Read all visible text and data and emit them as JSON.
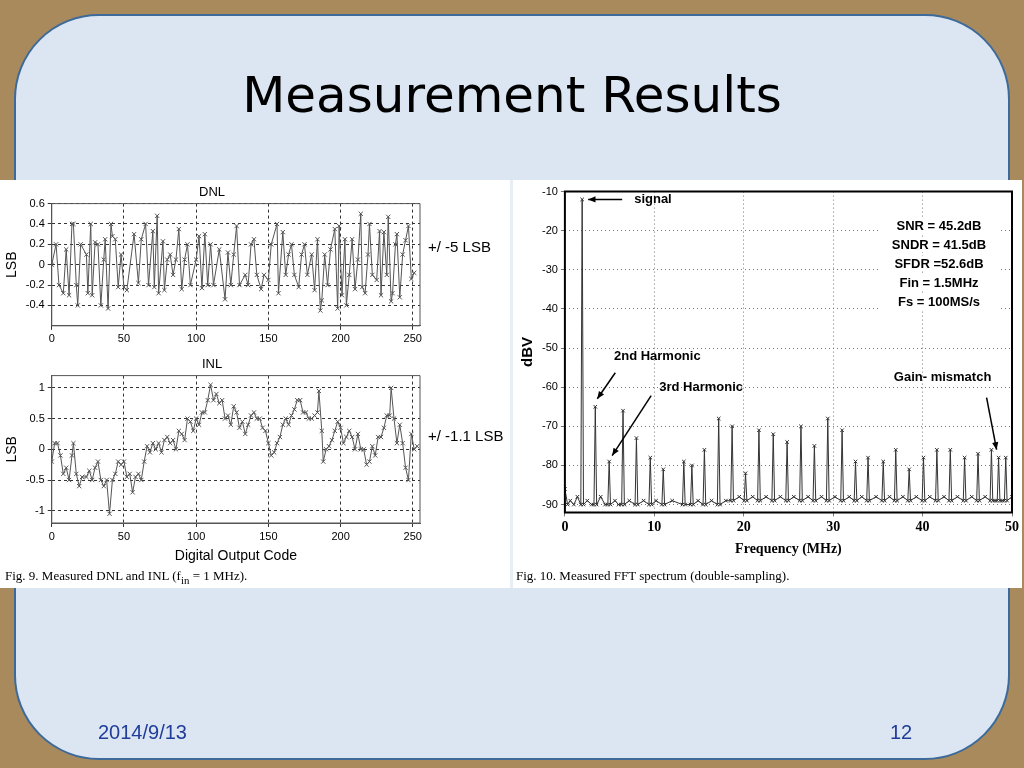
{
  "chart_data": [
    {
      "type": "line",
      "title": "DNL",
      "ylabel": "LSB",
      "xlim": [
        0,
        255
      ],
      "xticks": [
        0,
        50,
        100,
        150,
        200,
        250
      ],
      "ylim": [
        -0.6,
        0.6
      ],
      "yticks": [
        -0.4,
        -0.2,
        0,
        0.2,
        0.4,
        0.6
      ],
      "grid": true,
      "marker": "cross",
      "line_style": "solid",
      "x": [
        0,
        3,
        5,
        8,
        10,
        12,
        14,
        15,
        17,
        18,
        20,
        24,
        25,
        27,
        28,
        30,
        32,
        34,
        36,
        37,
        39,
        41,
        42,
        44,
        46,
        48,
        50,
        52,
        57,
        60,
        62,
        65,
        67,
        70,
        71,
        73,
        74,
        77,
        78,
        80,
        82,
        84,
        86,
        88,
        90,
        92,
        94,
        96,
        100,
        102,
        104,
        106,
        108,
        110,
        112,
        116,
        120,
        122,
        124,
        126,
        128,
        130,
        134,
        136,
        138,
        140,
        142,
        145,
        147,
        150,
        152,
        156,
        157,
        160,
        162,
        164,
        166,
        168,
        171,
        173,
        175,
        177,
        180,
        182,
        184,
        186,
        187,
        189,
        191,
        193,
        196,
        198,
        199,
        201,
        203,
        204,
        206,
        208,
        210,
        212,
        214,
        215,
        217,
        219,
        220,
        222,
        225,
        227,
        228,
        230,
        232,
        233,
        235,
        236,
        238,
        239,
        241,
        243,
        245,
        247,
        249,
        251
      ],
      "series": [
        {
          "color": "#555555",
          "values": [
            0,
            0.2,
            -0.2,
            -0.28,
            0.15,
            -0.3,
            0.4,
            0.4,
            -0.2,
            -0.4,
            0.2,
            0.1,
            -0.28,
            0.4,
            -0.3,
            0.22,
            0.2,
            -0.4,
            0.05,
            0.25,
            -0.43,
            0.4,
            0.28,
            0.25,
            -0.22,
            0.1,
            -0.22,
            -0.25,
            0.3,
            -0.18,
            0.25,
            0.4,
            -0.2,
            0.33,
            -0.22,
            0.48,
            -0.28,
            0.23,
            -0.25,
            0.05,
            0.1,
            -0.1,
            0.05,
            0.35,
            -0.24,
            0.05,
            0.2,
            -0.2,
            0.05,
            0.28,
            -0.23,
            0.3,
            -0.2,
            0.2,
            -0.2,
            0.15,
            -0.34,
            0.12,
            -0.2,
            0.1,
            0.38,
            -0.2,
            -0.1,
            -0.2,
            0.2,
            0.25,
            -0.1,
            -0.24,
            -0.1,
            -0.15,
            0.2,
            0.4,
            -0.28,
            0.32,
            -0.1,
            0.1,
            0.2,
            -0.1,
            -0.22,
            0.1,
            0.2,
            -0.1,
            0.1,
            -0.25,
            0.25,
            -0.45,
            -0.35,
            0.1,
            -0.2,
            0.15,
            0.35,
            -0.43,
            0.38,
            -0.3,
            0.25,
            -0.4,
            -0.1,
            0.25,
            -0.24,
            0.05,
            0.5,
            -0.22,
            -0.28,
            0.1,
            0.4,
            -0.1,
            -0.15,
            0.33,
            -0.3,
            0.32,
            -0.1,
            0.47,
            -0.36,
            -0.28,
            0.2,
            0.3,
            -0.32,
            0.1,
            0.24,
            0.38,
            -0.14,
            -0.08
          ]
        }
      ],
      "annotations": [
        "Measurement Results",
        "+/ -5 LSB"
      ]
    },
    {
      "type": "line",
      "title": "INL",
      "xlabel": "Digital Output Code",
      "ylabel": "LSB",
      "xlim": [
        0,
        255
      ],
      "xticks": [
        0,
        50,
        100,
        150,
        200,
        250
      ],
      "ylim": [
        -1.2,
        1.2
      ],
      "yticks": [
        -1,
        -0.5,
        0,
        0.5,
        1
      ],
      "grid": true,
      "marker": "cross",
      "line_style": "solid",
      "x": [
        0,
        2,
        4,
        6,
        8,
        10,
        12,
        14,
        15,
        17,
        19,
        21,
        24,
        26,
        28,
        30,
        32,
        34,
        36,
        38,
        40,
        42,
        44,
        46,
        48,
        50,
        52,
        54,
        56,
        58,
        60,
        62,
        64,
        66,
        68,
        70,
        72,
        74,
        76,
        78,
        80,
        82,
        84,
        86,
        88,
        90,
        92,
        94,
        96,
        98,
        100,
        102,
        104,
        106,
        108,
        110,
        112,
        114,
        116,
        118,
        120,
        122,
        124,
        126,
        128,
        130,
        132,
        134,
        136,
        138,
        140,
        142,
        144,
        146,
        148,
        150,
        152,
        154,
        156,
        158,
        160,
        162,
        164,
        166,
        168,
        170,
        172,
        174,
        176,
        178,
        180,
        182,
        184,
        185,
        187,
        188,
        190,
        192,
        194,
        196,
        198,
        200,
        202,
        204,
        206,
        208,
        210,
        212,
        214,
        216,
        218,
        220,
        222,
        224,
        226,
        228,
        230,
        232,
        234,
        235,
        237,
        239,
        241,
        243,
        245,
        247,
        249,
        251,
        253
      ],
      "series": [
        {
          "color": "#555555",
          "values": [
            -0.2,
            0.1,
            0.1,
            -0.1,
            -0.4,
            -0.3,
            -0.5,
            -0.1,
            0.1,
            -0.4,
            -0.6,
            -0.45,
            -0.45,
            -0.35,
            -0.5,
            -0.3,
            -0.2,
            -0.5,
            -0.6,
            -0.5,
            -1.05,
            -0.5,
            -0.4,
            -0.2,
            -0.25,
            -0.2,
            -0.45,
            -0.4,
            -0.7,
            -0.45,
            -0.4,
            -0.5,
            -0.2,
            0.05,
            -0.05,
            0.1,
            0,
            0.1,
            -0.05,
            0.15,
            0.2,
            0.1,
            0.15,
            0,
            0.3,
            0.25,
            0.15,
            0.5,
            0.45,
            0.3,
            0.5,
            0.4,
            0.6,
            0.6,
            0.8,
            1.05,
            0.8,
            0.9,
            0.75,
            0.8,
            0.5,
            0.55,
            0.4,
            0.7,
            0.6,
            0.35,
            0.45,
            0.25,
            0.4,
            0.55,
            0.6,
            0.5,
            0.5,
            0.35,
            0.3,
            0.1,
            -0.1,
            -0.05,
            0.1,
            0.2,
            0.4,
            0.5,
            0.4,
            0.55,
            0.65,
            0.8,
            0.8,
            0.6,
            0.6,
            0.5,
            0.5,
            0.55,
            0.6,
            0.95,
            0.3,
            -0.2,
            0,
            0.05,
            0.15,
            0.3,
            0.45,
            0.35,
            0.1,
            0.2,
            0.3,
            0.2,
            0,
            0.25,
            0,
            0,
            -0.25,
            -0.2,
            0.05,
            -0.1,
            0.2,
            0.2,
            0.35,
            0.55,
            0.55,
            1,
            0.5,
            0.1,
            0.4,
            0.1,
            -0.3,
            -0.5,
            0.25,
            0,
            0.05
          ]
        }
      ],
      "annotations": [
        "+/ -1.1 LSB",
        "Fig. 9.   Measured DNL and INL (f$_{in}$ = 1 MHz)."
      ]
    },
    {
      "type": "line",
      "xlabel": "Frequency (MHz)",
      "ylabel": "dBV",
      "xlim": [
        0,
        50
      ],
      "xticks": [
        0,
        10,
        20,
        30,
        40,
        50
      ],
      "ylim": [
        -92,
        -10
      ],
      "yticks": [
        -90,
        -80,
        -70,
        -60,
        -50,
        -40,
        -30,
        -20,
        -10
      ],
      "grid": true,
      "marker": "cross",
      "line_style": "solid",
      "x": [
        0,
        0.3,
        0.6,
        1.0,
        1.4,
        1.78,
        1.93,
        2.08,
        2.5,
        3.0,
        3.25,
        3.4,
        3.55,
        4.0,
        4.5,
        4.8,
        4.95,
        5.1,
        5.6,
        6.0,
        6.35,
        6.5,
        6.65,
        7.2,
        7.85,
        8.0,
        8.15,
        8.8,
        9.4,
        9.55,
        9.7,
        10.2,
        10.85,
        11.0,
        11.15,
        12.0,
        13.15,
        13.3,
        13.45,
        14.05,
        14.2,
        14.35,
        14.9,
        15.45,
        15.6,
        15.75,
        16.4,
        17.05,
        17.2,
        17.35,
        18.0,
        18.55,
        18.7,
        18.85,
        19.5,
        20.05,
        20.2,
        20.35,
        21.0,
        21.55,
        21.7,
        21.85,
        22.5,
        23.15,
        23.3,
        23.45,
        24.1,
        24.7,
        24.85,
        25.0,
        25.6,
        26.25,
        26.4,
        26.55,
        27.2,
        27.75,
        27.9,
        28.05,
        28.7,
        29.25,
        29.4,
        29.55,
        30.2,
        30.85,
        31.0,
        31.15,
        31.8,
        32.35,
        32.5,
        32.65,
        33.2,
        33.75,
        33.9,
        34.05,
        34.8,
        35.45,
        35.6,
        35.75,
        36.3,
        36.85,
        37.0,
        37.15,
        37.8,
        38.35,
        38.5,
        38.65,
        39.3,
        39.95,
        40.1,
        40.25,
        40.8,
        41.45,
        41.6,
        41.75,
        42.4,
        42.95,
        43.1,
        43.25,
        43.9,
        44.55,
        44.7,
        44.85,
        45.5,
        46.05,
        46.2,
        46.35,
        47.0,
        47.55,
        47.7,
        47.85,
        48.1,
        48.35,
        48.5,
        48.65,
        48.9,
        49.15,
        49.3,
        49.45,
        50
      ],
      "series": [
        {
          "color": "#333333",
          "values": [
            -86,
            -90,
            -89,
            -90,
            -88,
            -90,
            -12,
            -90,
            -89,
            -90,
            -90,
            -65,
            -90,
            -88,
            -90,
            -90,
            -79,
            -90,
            -89,
            -90,
            -90,
            -66,
            -90,
            -89,
            -90,
            -73,
            -90,
            -89,
            -90,
            -78,
            -90,
            -89,
            -90,
            -81,
            -90,
            -89,
            -90,
            -79,
            -90,
            -90,
            -80,
            -90,
            -89,
            -90,
            -76,
            -90,
            -89,
            -90,
            -68,
            -90,
            -89,
            -89,
            -70,
            -89,
            -88,
            -89,
            -82,
            -89,
            -88,
            -89,
            -71,
            -89,
            -88,
            -89,
            -72,
            -89,
            -88,
            -89,
            -74,
            -89,
            -88,
            -89,
            -70,
            -89,
            -88,
            -89,
            -75,
            -89,
            -88,
            -89,
            -68,
            -89,
            -88,
            -89,
            -71,
            -89,
            -88,
            -89,
            -79,
            -89,
            -88,
            -89,
            -78,
            -89,
            -88,
            -89,
            -79,
            -89,
            -88,
            -89,
            -76,
            -89,
            -88,
            -89,
            -81,
            -89,
            -88,
            -89,
            -78,
            -89,
            -88,
            -89,
            -76,
            -89,
            -88,
            -89,
            -76,
            -89,
            -88,
            -89,
            -78,
            -89,
            -88,
            -89,
            -77,
            -89,
            -88,
            -89,
            -76,
            -89,
            -89,
            -89,
            -78,
            -89,
            -89,
            -89,
            -78,
            -89,
            -88
          ]
        }
      ],
      "annotations": [
        {
          "text": "signal",
          "x": 1.93,
          "y": -12
        },
        {
          "text": "2nd Harmonic",
          "x": 3.4,
          "y": -65
        },
        {
          "text": "3rd Harmonic",
          "x": 4.95,
          "y": -79
        },
        {
          "text": "Gain- mismatch",
          "x": 48.5,
          "y": -78
        },
        "SNR = 45.2dB",
        "SNDR = 41.5dB",
        "SFDR =52.6dB",
        "Fin = 1.5MHz",
        "Fs = 100MS/s",
        "Fig. 10.   Measured FFT spectrum (double-sampling).",
        "2014/9/13",
        "12"
      ]
    }
  ]
}
